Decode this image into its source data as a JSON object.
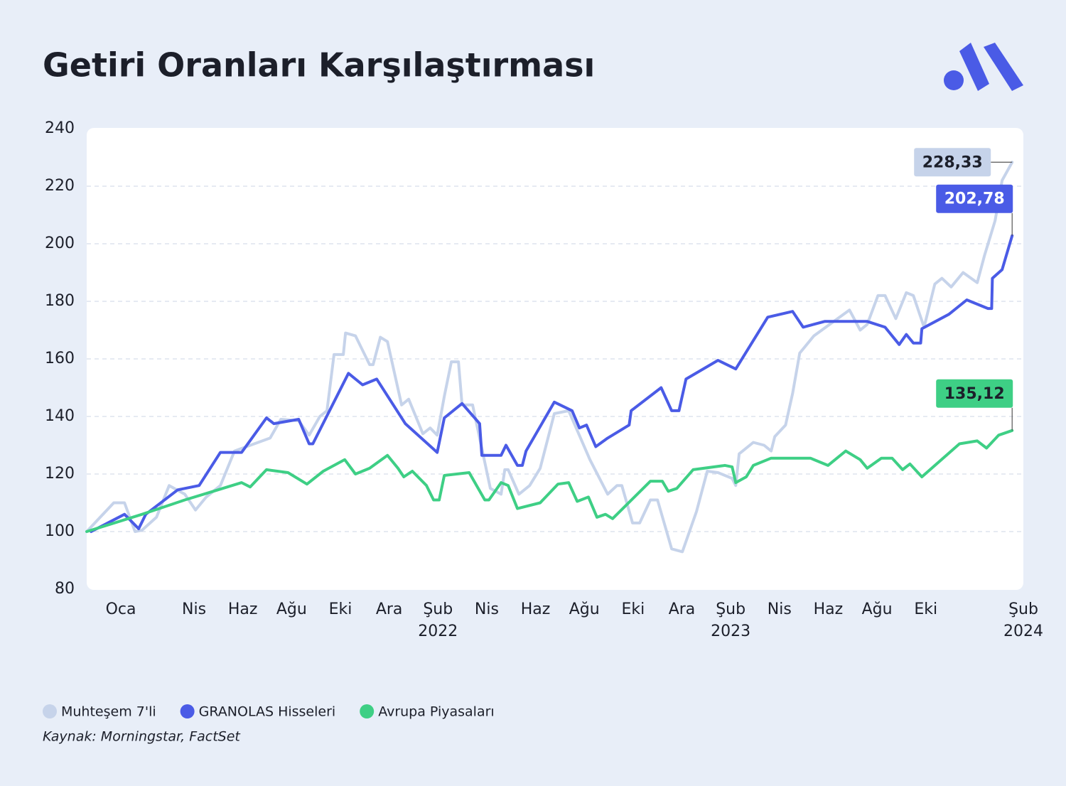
{
  "chart_data": {
    "type": "line",
    "title": "Getiri Oranları Karşılaştırması",
    "source": "Kaynak: Morningstar, FactSet",
    "ylim": [
      80,
      240
    ],
    "yticks": [
      80,
      100,
      120,
      140,
      160,
      180,
      200,
      220,
      240
    ],
    "grid": true,
    "xlim": [
      -1.4,
      37
    ],
    "xticks": [
      {
        "value": 0,
        "label": "Oca"
      },
      {
        "value": 3,
        "label": "Nis"
      },
      {
        "value": 5,
        "label": "Haz"
      },
      {
        "value": 7,
        "label": "Ağu"
      },
      {
        "value": 9,
        "label": "Eki"
      },
      {
        "value": 11,
        "label": "Ara"
      },
      {
        "value": 13,
        "label": "Şub 2022"
      },
      {
        "value": 15,
        "label": "Nis"
      },
      {
        "value": 17,
        "label": "Haz"
      },
      {
        "value": 19,
        "label": "Ağu"
      },
      {
        "value": 21,
        "label": "Eki"
      },
      {
        "value": 23,
        "label": "Ara"
      },
      {
        "value": 25,
        "label": "Şub 2023"
      },
      {
        "value": 27,
        "label": "Nis"
      },
      {
        "value": 29,
        "label": "Haz"
      },
      {
        "value": 31,
        "label": "Ağu"
      },
      {
        "value": 33,
        "label": "Eki"
      },
      {
        "value": 37,
        "label": "Şub 2024"
      }
    ],
    "series": [
      {
        "name": "Muhteşem 7'li",
        "color": "#c6d3ea",
        "x": [
          -1.4,
          -0.29,
          0.15,
          0.58,
          0.87,
          1.46,
          1.98,
          2.62,
          3.06,
          3.5,
          4.08,
          4.66,
          6.12,
          6.56,
          7.29,
          7.72,
          8.16,
          8.45,
          8.6,
          8.74,
          9.12,
          9.21,
          9.62,
          10.2,
          10.34,
          10.64,
          10.93,
          11.51,
          11.8,
          12.38,
          12.68,
          12.97,
          13.26,
          13.55,
          13.84,
          13.99,
          14.42,
          15.15,
          15.59,
          15.74,
          15.88,
          16.32,
          16.76,
          17.19,
          17.77,
          18.36,
          19.23,
          19.96,
          20.34,
          20.54,
          20.98,
          21.27,
          21.71,
          22.0,
          22.58,
          23.02,
          23.6,
          24.04,
          24.48,
          25.06,
          25.21,
          25.35,
          25.93,
          26.37,
          26.66,
          26.81,
          27.25,
          27.54,
          27.83,
          28.41,
          29.87,
          30.31,
          30.6,
          31.04,
          31.33,
          31.77,
          32.2,
          32.49,
          32.93,
          33.37,
          33.66,
          34.04,
          34.53,
          35.11,
          35.41,
          35.84,
          36.13,
          36.54
        ],
        "values": [
          100,
          110,
          110,
          100,
          100.5,
          105,
          116,
          113,
          107.5,
          112,
          116,
          128,
          132.5,
          139,
          138.5,
          133.5,
          140,
          142,
          152,
          161.5,
          161.5,
          169,
          168,
          158,
          158,
          167.5,
          166,
          144,
          146,
          134,
          136,
          133.5,
          147,
          159,
          159,
          144,
          144,
          115,
          113,
          121.5,
          121.5,
          113,
          116,
          122,
          141,
          142,
          125,
          113,
          116,
          116,
          103,
          103,
          111,
          111,
          94,
          93,
          107,
          121,
          120.5,
          118.5,
          116,
          127,
          131,
          130,
          128,
          133,
          137,
          148,
          162,
          168,
          177,
          170,
          172,
          182,
          182,
          174,
          183,
          182,
          171,
          186,
          188,
          185,
          190,
          186.5,
          196,
          208,
          222,
          228.33
        ],
        "value_labels": [
          null,
          null,
          null,
          null,
          null,
          null,
          null,
          null,
          null,
          null,
          null,
          null,
          null,
          null,
          null,
          null,
          null,
          null,
          null,
          null,
          null,
          null,
          null,
          null,
          null,
          null,
          null,
          null,
          null,
          null,
          null,
          null,
          null,
          null,
          null,
          null,
          null,
          null,
          null,
          null,
          null,
          null,
          null,
          null,
          null,
          null,
          null,
          null,
          null,
          null,
          null,
          null,
          null,
          null,
          null,
          null,
          null,
          null,
          null,
          null,
          null,
          null,
          null,
          null,
          null,
          null,
          null,
          null,
          null,
          null,
          null,
          null,
          null,
          null,
          null,
          null,
          null,
          null,
          null,
          null,
          null,
          null,
          null,
          null,
          null,
          null,
          null,
          "228,33"
        ]
      },
      {
        "name": "GRANOLAS Hisseleri",
        "color": "#4a5be6",
        "x": [
          -1.22,
          0.15,
          0.73,
          1.02,
          2.33,
          3.21,
          4.08,
          4.95,
          5.97,
          6.27,
          7.29,
          7.72,
          7.87,
          9.33,
          9.91,
          10.49,
          11.66,
          12.97,
          13.26,
          13.99,
          14.71,
          14.8,
          15.59,
          15.79,
          16.26,
          16.46,
          16.61,
          17.77,
          18.5,
          18.8,
          19.09,
          19.47,
          19.96,
          20.84,
          20.92,
          22.15,
          22.58,
          22.88,
          23.17,
          24.48,
          25.21,
          26.52,
          27.54,
          27.97,
          28.85,
          30.6,
          31.33,
          31.91,
          32.2,
          32.49,
          32.79,
          32.84,
          33.95,
          34.68,
          35.55,
          35.7,
          35.73,
          36.13,
          36.54
        ],
        "values": [
          100,
          106,
          101,
          106,
          114.5,
          116,
          127.5,
          127.5,
          139.5,
          137.5,
          139,
          130.5,
          130.5,
          155,
          151,
          153,
          137.5,
          127.5,
          139.5,
          144.5,
          137.5,
          126.5,
          126.5,
          130,
          123,
          123,
          128,
          145,
          142,
          136,
          137,
          129.5,
          132.5,
          137,
          142,
          150,
          142,
          142,
          153,
          159.5,
          156.5,
          174.5,
          176.5,
          171,
          173,
          173,
          171,
          165,
          168.5,
          165.5,
          165.5,
          170.5,
          175.5,
          180.5,
          177.5,
          177.5,
          188,
          191,
          202.78
        ],
        "value_labels": [
          null,
          null,
          null,
          null,
          null,
          null,
          null,
          null,
          null,
          null,
          null,
          null,
          null,
          null,
          null,
          null,
          null,
          null,
          null,
          null,
          null,
          null,
          null,
          null,
          null,
          null,
          null,
          null,
          null,
          null,
          null,
          null,
          null,
          null,
          null,
          null,
          null,
          null,
          null,
          null,
          null,
          null,
          null,
          null,
          null,
          null,
          null,
          null,
          null,
          null,
          null,
          null,
          null,
          null,
          null,
          null,
          null,
          null,
          "202,78"
        ]
      },
      {
        "name": "Avrupa Piyasaları",
        "color": "#3ecf85",
        "x": [
          -1.4,
          0.87,
          2.62,
          3.79,
          4.95,
          5.3,
          5.97,
          6.85,
          7.63,
          8.3,
          9.18,
          9.62,
          10.2,
          10.93,
          11.36,
          11.6,
          11.95,
          12.53,
          12.82,
          13.05,
          13.26,
          14.28,
          14.92,
          15.09,
          15.59,
          15.88,
          16.26,
          17.19,
          17.92,
          18.36,
          18.71,
          19.17,
          19.52,
          19.87,
          20.16,
          21.71,
          22.2,
          22.44,
          22.79,
          23.46,
          24.77,
          25.06,
          25.21,
          25.64,
          25.93,
          26.66,
          28.27,
          28.99,
          29.72,
          30.31,
          30.6,
          31.18,
          31.62,
          32.05,
          32.35,
          32.84,
          34.38,
          35.11,
          35.49,
          35.99,
          36.54
        ],
        "values": [
          100,
          106,
          111,
          114,
          117,
          115.5,
          121.5,
          120.5,
          116.5,
          121,
          125,
          120,
          122,
          126.5,
          122,
          119,
          121,
          116,
          111,
          111,
          119.5,
          120.5,
          111,
          111,
          117,
          116,
          108,
          110,
          116.5,
          117,
          110.5,
          112,
          105,
          106,
          104.5,
          117.5,
          117.5,
          114,
          115,
          121.5,
          123,
          122.5,
          117,
          119,
          123,
          125.5,
          125.5,
          123,
          128,
          125,
          122,
          125.5,
          125.5,
          121.5,
          123.5,
          119,
          130.5,
          131.5,
          129,
          133.5,
          135.12
        ],
        "value_labels": [
          null,
          null,
          null,
          null,
          null,
          null,
          null,
          null,
          null,
          null,
          null,
          null,
          null,
          null,
          null,
          null,
          null,
          null,
          null,
          null,
          null,
          null,
          null,
          null,
          null,
          null,
          null,
          null,
          null,
          null,
          null,
          null,
          null,
          null,
          null,
          null,
          null,
          null,
          null,
          null,
          null,
          null,
          null,
          null,
          null,
          null,
          null,
          null,
          null,
          null,
          null,
          null,
          null,
          null,
          null,
          null,
          null,
          null,
          null,
          null,
          "135,12"
        ]
      }
    ]
  }
}
